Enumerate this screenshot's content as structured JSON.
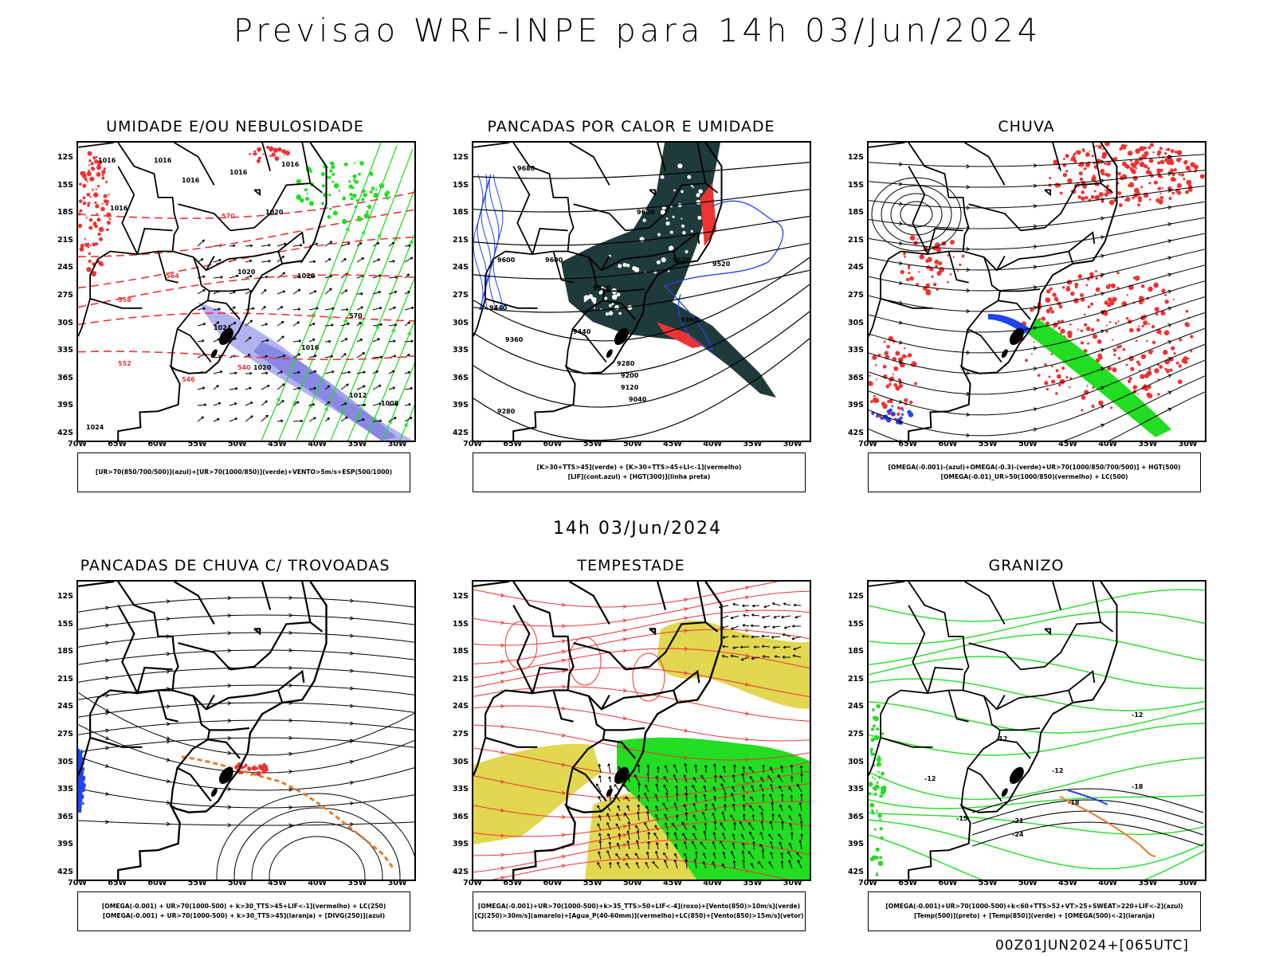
{
  "header": {
    "title": "Previsao WRF-INPE  para 14h 03/Jun/2024",
    "subtitle": "14h 03/Jun/2024",
    "footer": "00Z01JUN2024+[065UTC]"
  },
  "axes": {
    "lat_labels": [
      "12S",
      "15S",
      "18S",
      "21S",
      "24S",
      "27S",
      "30S",
      "33S",
      "36S",
      "39S",
      "42S"
    ],
    "lon_labels": [
      "70W",
      "65W",
      "60W",
      "55W",
      "50W",
      "45W",
      "40W",
      "35W",
      "30W"
    ]
  },
  "colors": {
    "red": "#ee3333",
    "green": "#22dd22",
    "blue": "#2244ee",
    "lavender": "#9999ee",
    "darkteal": "#1f3a3a",
    "yellow": "#ddd033",
    "orange": "#e87a2a",
    "black": "#000000"
  },
  "panels": [
    {
      "id": "umidade",
      "title": "UMIDADE E/OU NEBULOSIDADE",
      "legend": [
        "[UR>70(850/700/500)](azul)+[UR>70(1000/850)](verde)+VENTO>5m/s+ESP(500/1000)"
      ],
      "contour_labels": [
        "1016",
        "1016",
        "1016",
        "1016",
        "1016",
        "1016",
        "1020",
        "1020",
        "1020",
        "1024",
        "1020",
        "1016",
        "1012",
        "1008",
        "1024",
        "570",
        "570",
        "564",
        "558",
        "552",
        "546",
        "540",
        "546",
        "552",
        "558",
        "564"
      ]
    },
    {
      "id": "pancadas_calor",
      "title": "PANCADAS POR CALOR E UMIDADE",
      "legend": [
        "[K>30+TTS>45](verde) + [K>30+TTS>45+LI<-1](vermelho)",
        "[LIF](cont.azul) + [HGT(300)](linha preta)"
      ],
      "contour_labels": [
        "9680",
        "9600",
        "9600",
        "9600",
        "9520",
        "9520",
        "9520",
        "9440",
        "9440",
        "9360",
        "9360",
        "9280",
        "9200",
        "9120",
        "9040",
        "9280"
      ]
    },
    {
      "id": "chuva",
      "title": "CHUVA",
      "legend": [
        "[OMEGA(-0.001)-(azul)+OMEGA(-0.3)-(verde)+UR>70(1000/850/700/500)] + HGT(500)",
        "[OMEGA(-0.01)_UR>50(1000/850)(vermelho) + LC(500)"
      ]
    },
    {
      "id": "pancadas_trovoadas",
      "title": "PANCADAS DE CHUVA C/ TROVOADAS",
      "legend": [
        "[OMEGA(-0.001) + UR>70(1000-500) + k>30_TTS>45+LIF<-1](vermelho) + LC(250)",
        "[OMEGA(-0.001) + UR>70(1000-500) + k>30_TTS>45](laranja) + [DIVG(250)](azul)"
      ]
    },
    {
      "id": "tempestade",
      "title": "TEMPESTADE",
      "legend": [
        "[OMEGA(-0.001)+UR>70(1000-500)+k>35_TTS>50+LIF<-4](roxo)+[Vento(850)>10m/s](verde)",
        "[CJ(250)>30m/s](amarelo)+[Agua_P(40-60mm)](vermelho)+LC(850)+[Vento(850)>15m/s](vetor)"
      ]
    },
    {
      "id": "granizo",
      "title": "GRANIZO",
      "legend": [
        "[OMEGA(-0.001)+UR>70(1000-500)+k<60+TTS>52+VT>25+SWEAT>220+LIF<-2](azul)",
        "[Temp(500)](preto) + [Temp(850)](verde) + [OMEGA(500)<-2](laranja)"
      ],
      "contour_labels": [
        "-12",
        "-12",
        "-12",
        "-12",
        "-15",
        "-18",
        "-18",
        "-21",
        "-24"
      ]
    }
  ]
}
